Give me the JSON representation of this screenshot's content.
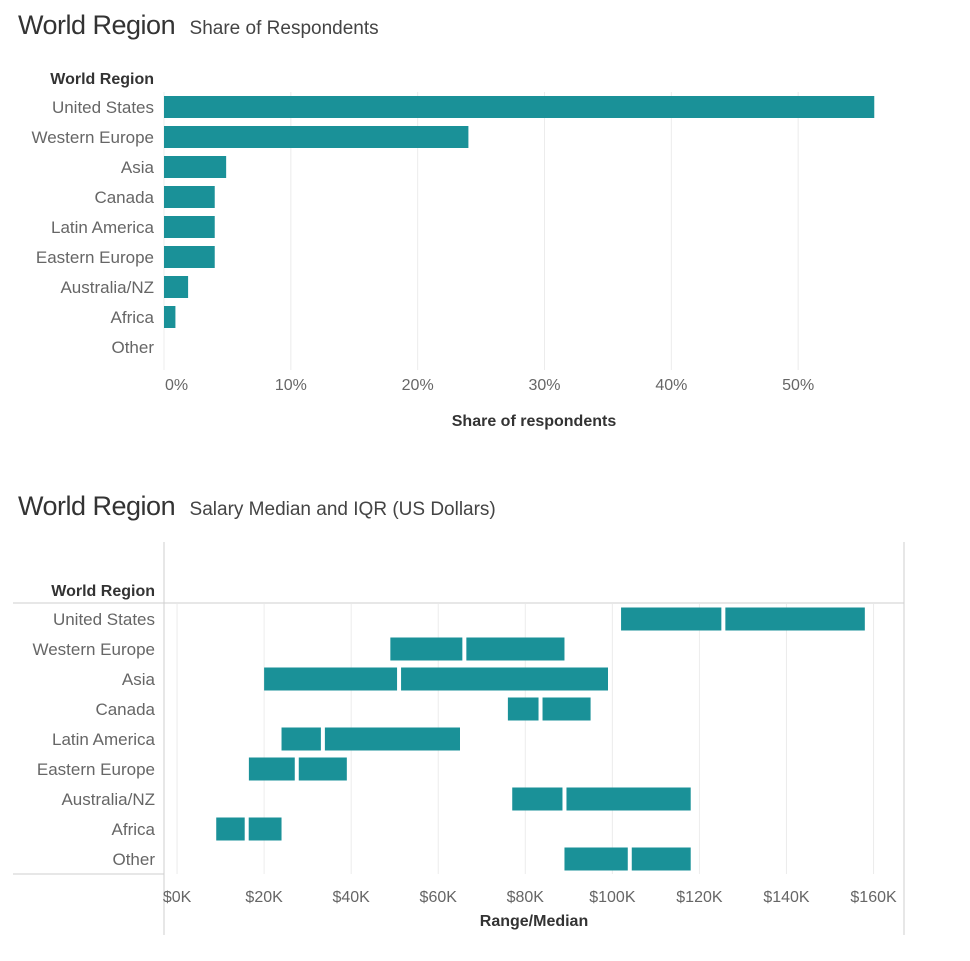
{
  "charts": {
    "share": {
      "title": "World Region",
      "subtitle": "Share of Respondents"
    },
    "salary": {
      "title": "World Region",
      "subtitle": "Salary Median and IQR (US Dollars)"
    }
  },
  "colors": {
    "bar": "#1a9198",
    "grid": "#ececec",
    "axis": "#cfcfcf",
    "label": "#666666",
    "header": "#333333"
  },
  "chart_data": [
    {
      "type": "bar",
      "orientation": "horizontal",
      "title": "World Region",
      "subtitle": "Share of Respondents",
      "row_header": "World Region",
      "xlabel": "Share of respondents",
      "categories": [
        "United States",
        "Western Europe",
        "Asia",
        "Canada",
        "Latin America",
        "Eastern Europe",
        "Australia/NZ",
        "Africa",
        "Other"
      ],
      "values": [
        0.56,
        0.24,
        0.049,
        0.04,
        0.04,
        0.04,
        0.019,
        0.009,
        0.0
      ],
      "xlim": [
        0,
        0.6
      ],
      "xticks": [
        0,
        0.1,
        0.2,
        0.3,
        0.4,
        0.5
      ],
      "xtick_labels": [
        "0%",
        "10%",
        "20%",
        "30%",
        "40%",
        "50%"
      ],
      "grid": true
    },
    {
      "type": "bar",
      "orientation": "horizontal",
      "subtype": "range-median",
      "title": "World Region",
      "subtitle": "Salary Median and IQR (US Dollars)",
      "row_header": "World Region",
      "xlabel": "Range/Median",
      "categories": [
        "United States",
        "Western Europe",
        "Asia",
        "Canada",
        "Latin America",
        "Eastern Europe",
        "Australia/NZ",
        "Africa",
        "Other"
      ],
      "q1": [
        102000,
        49000,
        20000,
        76000,
        24000,
        16500,
        77000,
        9000,
        89000
      ],
      "median": [
        125500,
        66000,
        51000,
        83500,
        33500,
        27500,
        89000,
        16000,
        104000
      ],
      "q3": [
        158000,
        89000,
        99000,
        95000,
        65000,
        39000,
        118000,
        24000,
        118000
      ],
      "xlim": [
        -3000,
        167000
      ],
      "xticks": [
        0,
        20000,
        40000,
        60000,
        80000,
        100000,
        120000,
        140000,
        160000
      ],
      "xtick_labels": [
        "$0K",
        "$20K",
        "$40K",
        "$60K",
        "$80K",
        "$100K",
        "$120K",
        "$140K",
        "$160K"
      ],
      "grid": true
    }
  ]
}
